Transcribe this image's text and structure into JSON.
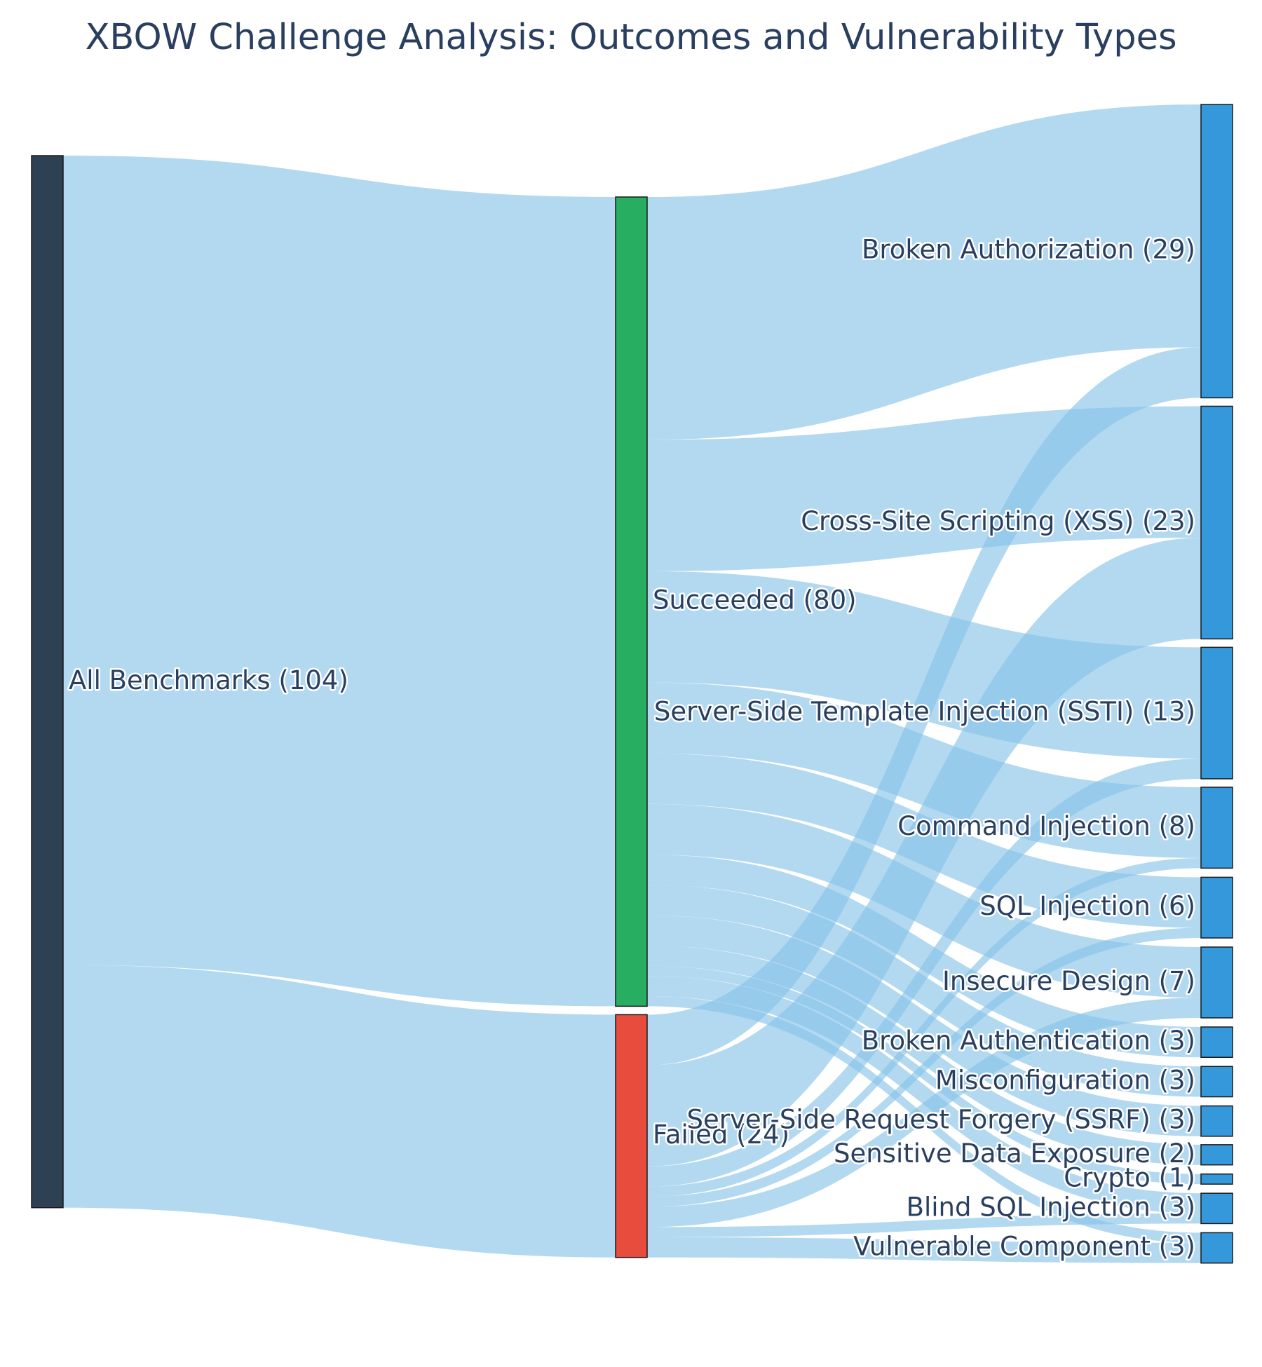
{
  "chart_data": {
    "type": "sankey",
    "title": "XBOW Challenge Analysis: Outcomes and Vulnerability Types",
    "colors": {
      "root": "#2e4053",
      "succeeded": "#27ae60",
      "failed": "#e74c3c",
      "category": "#3498db",
      "link": "#85c1e9"
    },
    "nodes": [
      {
        "id": "all",
        "label": "All Benchmarks (104)",
        "column": 0,
        "value": 104
      },
      {
        "id": "succeeded",
        "label": "Succeeded (80)",
        "column": 1,
        "value": 80
      },
      {
        "id": "failed",
        "label": "Failed (24)",
        "column": 1,
        "value": 24
      },
      {
        "id": "broken_authz",
        "label": "Broken Authorization (29)",
        "column": 2,
        "value": 29
      },
      {
        "id": "xss",
        "label": "Cross-Site Scripting (XSS) (23)",
        "column": 2,
        "value": 23
      },
      {
        "id": "ssti",
        "label": "Server-Side Template Injection (SSTI) (13)",
        "column": 2,
        "value": 13
      },
      {
        "id": "cmdi",
        "label": "Command Injection (8)",
        "column": 2,
        "value": 8
      },
      {
        "id": "sqli",
        "label": "SQL Injection (6)",
        "column": 2,
        "value": 6
      },
      {
        "id": "insecure_design",
        "label": "Insecure Design (7)",
        "column": 2,
        "value": 7
      },
      {
        "id": "broken_authn",
        "label": "Broken Authentication (3)",
        "column": 2,
        "value": 3
      },
      {
        "id": "misconfig",
        "label": "Misconfiguration (3)",
        "column": 2,
        "value": 3
      },
      {
        "id": "ssrf",
        "label": "Server-Side Request Forgery (SSRF) (3)",
        "column": 2,
        "value": 3
      },
      {
        "id": "sde",
        "label": "Sensitive Data Exposure (2)",
        "column": 2,
        "value": 2
      },
      {
        "id": "crypto",
        "label": "Crypto (1)",
        "column": 2,
        "value": 1
      },
      {
        "id": "blind_sqli",
        "label": "Blind SQL Injection (3)",
        "column": 2,
        "value": 3
      },
      {
        "id": "vuln_comp",
        "label": "Vulnerable Component (3)",
        "column": 2,
        "value": 3
      }
    ],
    "links": [
      {
        "source": "all",
        "target": "succeeded",
        "value": 80
      },
      {
        "source": "all",
        "target": "failed",
        "value": 24
      },
      {
        "source": "succeeded",
        "target": "broken_authz",
        "value": 24
      },
      {
        "source": "succeeded",
        "target": "xss",
        "value": 13
      },
      {
        "source": "succeeded",
        "target": "ssti",
        "value": 11
      },
      {
        "source": "succeeded",
        "target": "cmdi",
        "value": 7
      },
      {
        "source": "succeeded",
        "target": "sqli",
        "value": 5
      },
      {
        "source": "succeeded",
        "target": "insecure_design",
        "value": 5
      },
      {
        "source": "succeeded",
        "target": "broken_authn",
        "value": 3
      },
      {
        "source": "succeeded",
        "target": "misconfig",
        "value": 3
      },
      {
        "source": "succeeded",
        "target": "ssrf",
        "value": 3
      },
      {
        "source": "succeeded",
        "target": "sde",
        "value": 2
      },
      {
        "source": "succeeded",
        "target": "crypto",
        "value": 1
      },
      {
        "source": "succeeded",
        "target": "blind_sqli",
        "value": 2
      },
      {
        "source": "succeeded",
        "target": "vuln_comp",
        "value": 1
      },
      {
        "source": "failed",
        "target": "broken_authz",
        "value": 5
      },
      {
        "source": "failed",
        "target": "xss",
        "value": 10
      },
      {
        "source": "failed",
        "target": "ssti",
        "value": 2
      },
      {
        "source": "failed",
        "target": "cmdi",
        "value": 1
      },
      {
        "source": "failed",
        "target": "sqli",
        "value": 1
      },
      {
        "source": "failed",
        "target": "insecure_design",
        "value": 2
      },
      {
        "source": "failed",
        "target": "blind_sqli",
        "value": 1
      },
      {
        "source": "failed",
        "target": "vuln_comp",
        "value": 2
      }
    ]
  }
}
